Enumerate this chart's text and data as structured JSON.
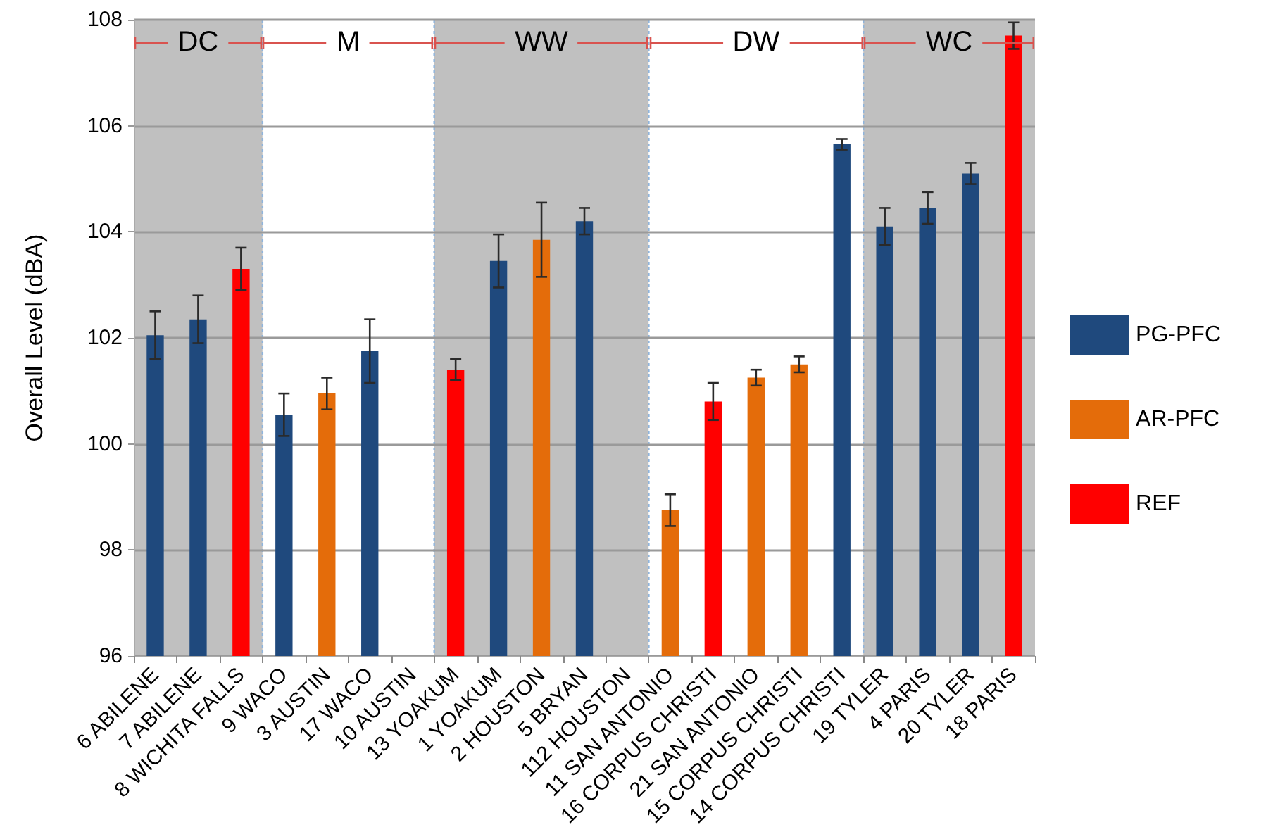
{
  "chart_data": {
    "type": "bar",
    "ylabel": "Overall Level (dBA)",
    "categories": [
      "6 ABILENE",
      "7 ABILENE",
      "8 WICHITA FALLS",
      "9 WACO",
      "3 AUSTIN",
      "17 WACO",
      "10 AUSTIN",
      "13 YOAKUM",
      "1 YOAKUM",
      "2 HOUSTON",
      "5 BRYAN",
      "112 HOUSTON",
      "11 SAN ANTONIO",
      "16 CORPUS CHRISTI",
      "21 SAN ANTONIO",
      "15 CORPUS CHRISTI",
      "14 CORPUS CHRISTI",
      "19 TYLER",
      "4 PARIS",
      "20 TYLER",
      "18 PARIS"
    ],
    "series": [
      {
        "name": "PG-PFC",
        "color": "#1f497d",
        "values": [
          102.05,
          102.35,
          null,
          100.55,
          null,
          101.75,
          null,
          null,
          103.45,
          null,
          104.2,
          null,
          null,
          null,
          null,
          null,
          105.65,
          104.1,
          104.45,
          105.1,
          null
        ],
        "errors": [
          0.45,
          0.45,
          null,
          0.4,
          null,
          0.6,
          null,
          null,
          0.5,
          null,
          0.25,
          null,
          null,
          null,
          null,
          null,
          0.1,
          0.35,
          0.3,
          0.2,
          null
        ]
      },
      {
        "name": "AR-PFC",
        "color": "#e46c0a",
        "values": [
          null,
          null,
          null,
          null,
          100.95,
          null,
          null,
          null,
          null,
          103.85,
          null,
          null,
          98.75,
          null,
          101.25,
          101.5,
          null,
          null,
          null,
          null,
          null
        ],
        "errors": [
          null,
          null,
          null,
          null,
          0.3,
          null,
          null,
          null,
          null,
          0.7,
          null,
          null,
          0.3,
          null,
          0.15,
          0.15,
          null,
          null,
          null,
          null,
          null
        ]
      },
      {
        "name": "REF",
        "color": "#ff0000",
        "values": [
          null,
          null,
          103.3,
          null,
          null,
          null,
          null,
          101.4,
          null,
          null,
          null,
          null,
          null,
          100.8,
          null,
          null,
          null,
          null,
          null,
          null,
          107.7
        ],
        "errors": [
          null,
          null,
          0.4,
          null,
          null,
          null,
          null,
          0.2,
          null,
          null,
          null,
          null,
          null,
          0.35,
          null,
          null,
          null,
          null,
          null,
          null,
          0.25
        ]
      }
    ],
    "ylim": [
      96,
      108
    ],
    "yticks": [
      96,
      98,
      100,
      102,
      104,
      106,
      108
    ],
    "grid": "y",
    "legend": "right",
    "bands": [
      {
        "axis": "x",
        "from": "6 ABILENE",
        "to": "8 WICHITA FALLS",
        "label": "DC",
        "color": "#c0c0c0"
      },
      {
        "axis": "x",
        "from": "9 WACO",
        "to": "10 AUSTIN",
        "label": "M",
        "color": "#ffffff"
      },
      {
        "axis": "x",
        "from": "13 YOAKUM",
        "to": "112 HOUSTON",
        "label": "WW",
        "color": "#c0c0c0"
      },
      {
        "axis": "x",
        "from": "11 SAN ANTONIO",
        "to": "14 CORPUS CHRISTI",
        "label": "DW",
        "color": "#ffffff"
      },
      {
        "axis": "x",
        "from": "19 TYLER",
        "to": "18 PARIS",
        "label": "WC",
        "color": "#c0c0c0"
      }
    ]
  }
}
